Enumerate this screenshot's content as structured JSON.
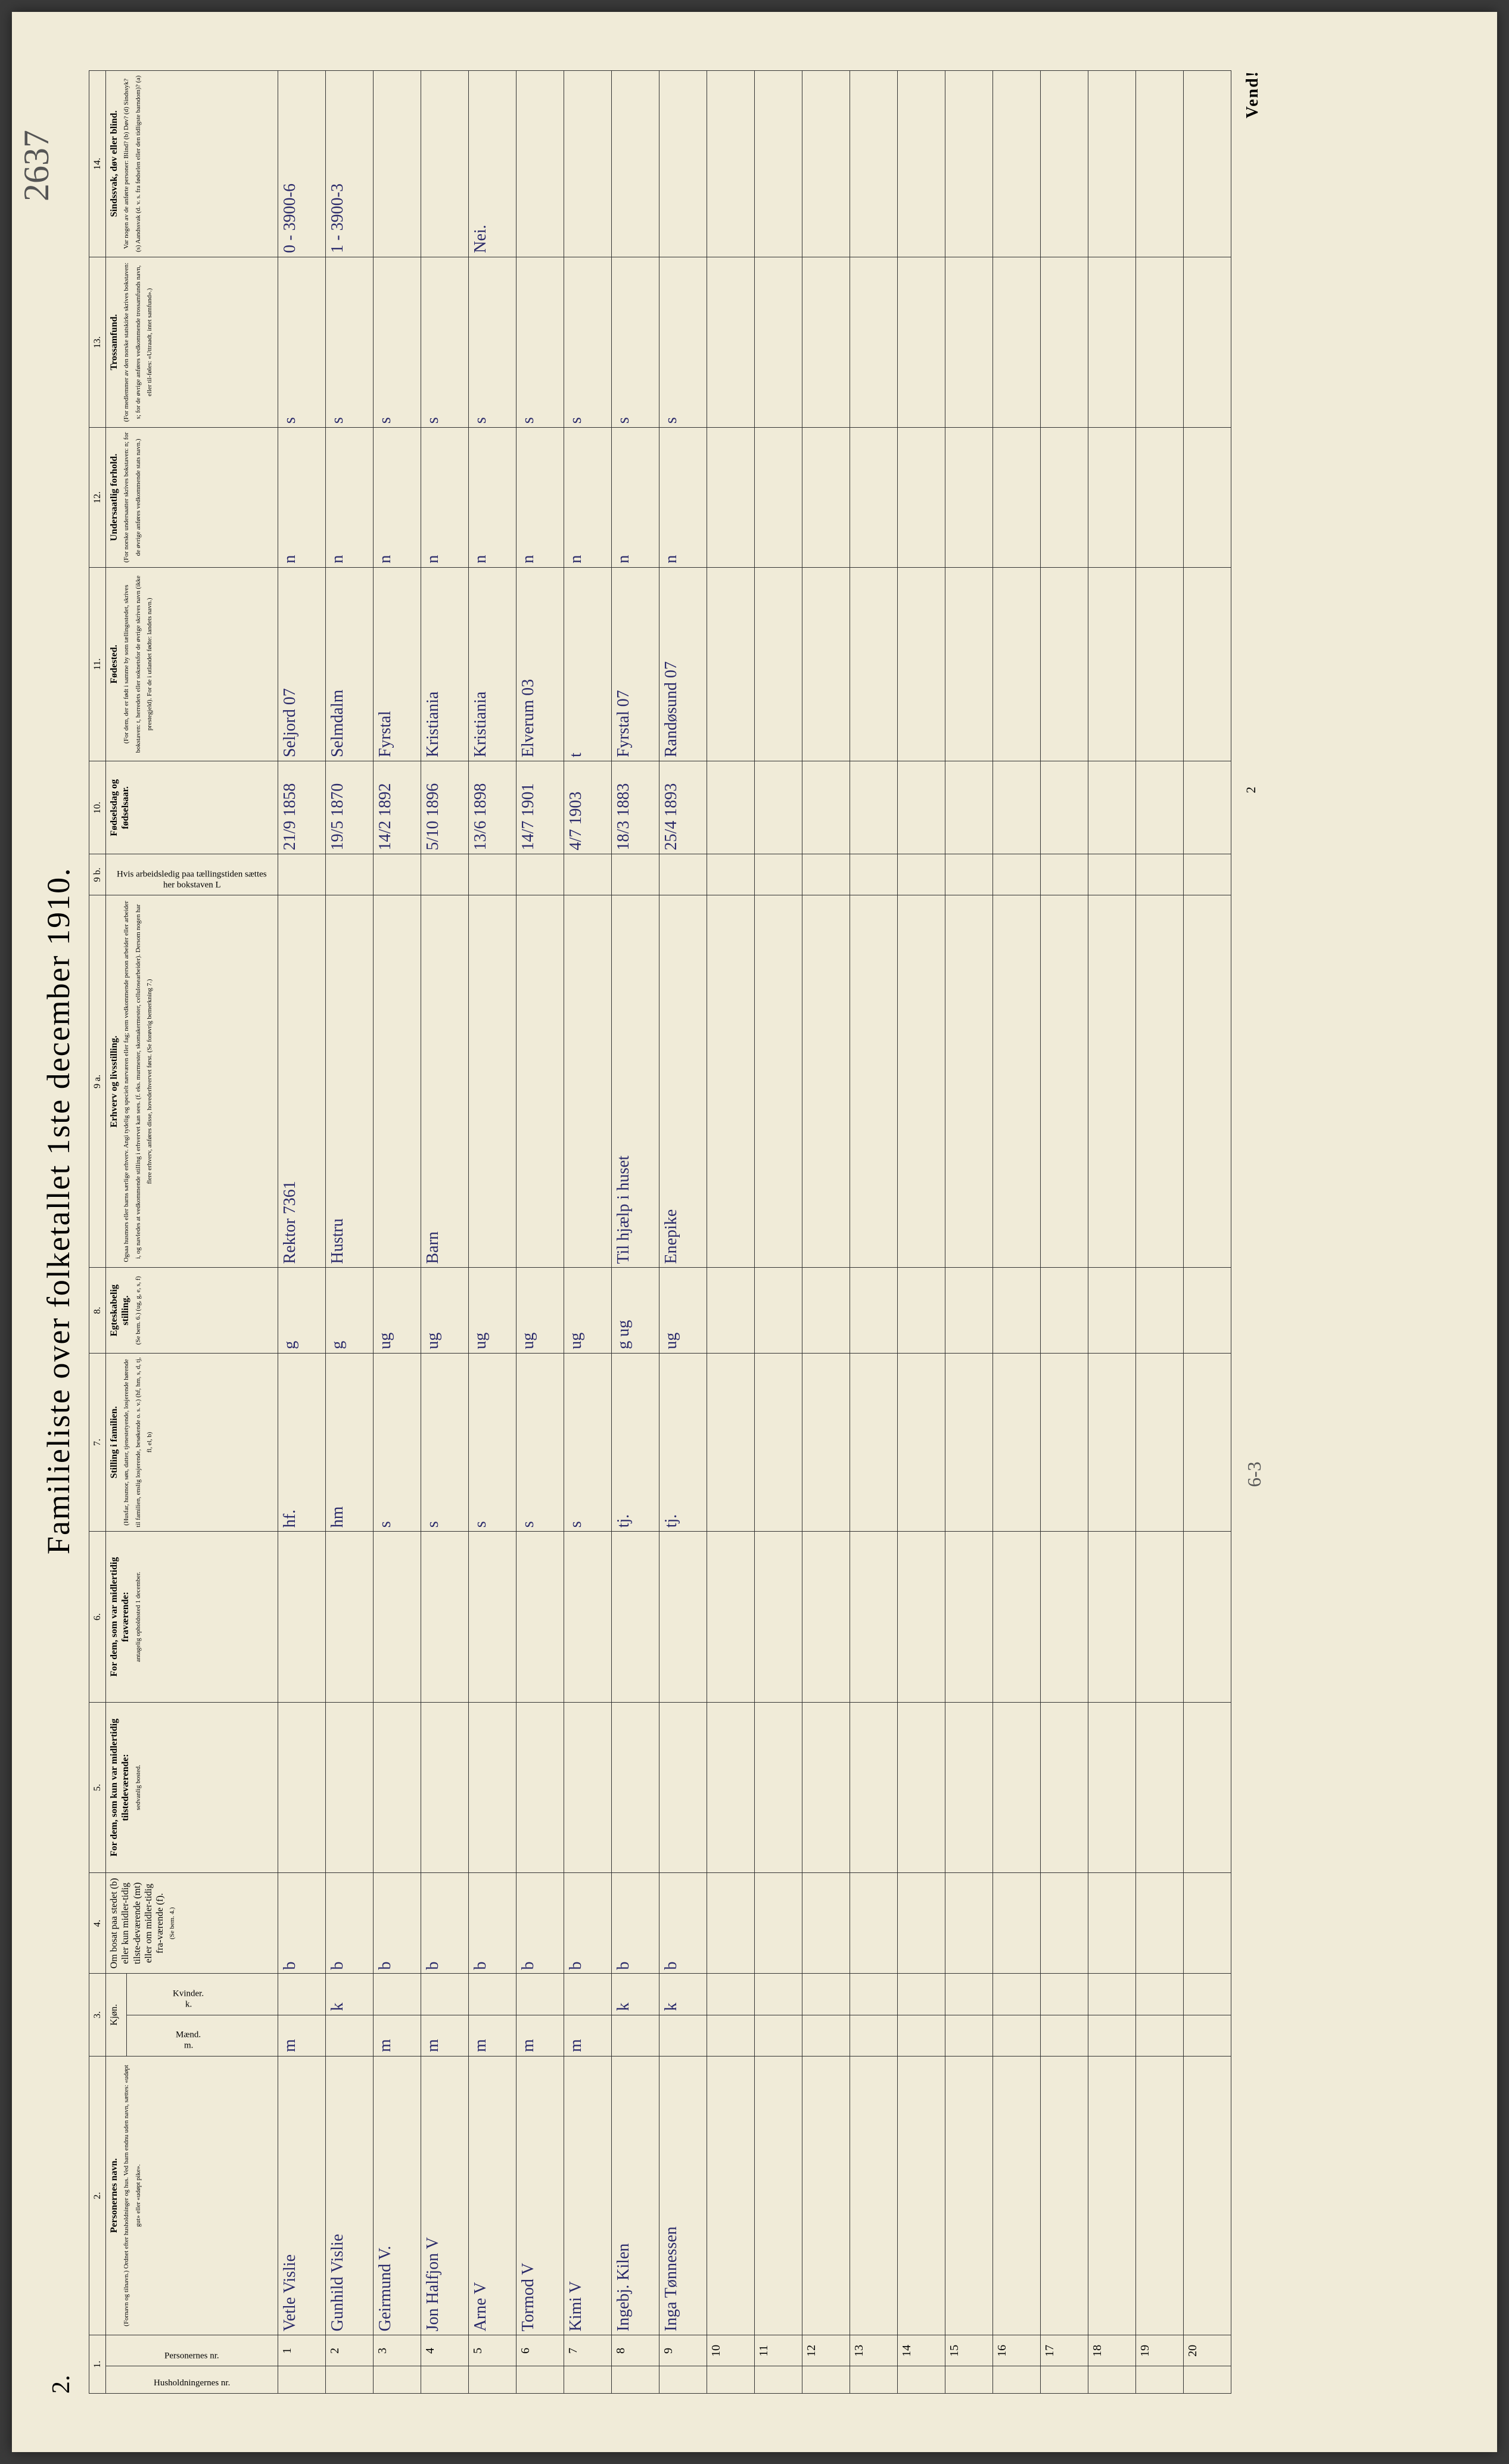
{
  "page": {
    "form_number": "2.",
    "title": "Familieliste over folketallet 1ste december 1910.",
    "handwritten_top": "2637",
    "vend": "Vend!",
    "footer_count": "6-3",
    "footer_page": "2"
  },
  "columns": [
    {
      "num": "1.",
      "vert": "Husholdningernes nr.",
      "sub": ""
    },
    {
      "num": "",
      "vert": "Personernes nr.",
      "sub": ""
    },
    {
      "num": "2.",
      "header": "Personernes navn.",
      "sub": "(Fornavn og tilnavn.)\nOrdnet efter husholdninger og hus.\nVed barn endnu uden navn, sættes: «udøpt gut» eller «udøpt pike»."
    },
    {
      "num": "3.",
      "header": "Kjøn.",
      "sub_m": "Mænd.",
      "sub_k": "Kvinder.",
      "foot_m": "m.",
      "foot_k": "k."
    },
    {
      "num": "4.",
      "header": "Om bosat paa stedet (b) eller kun midler-tidig tilste-deværende (mt) eller om midler-tidig fra-værende (f).",
      "sub": "(Se bem. 4.)"
    },
    {
      "num": "5.",
      "header": "For dem, som kun var midlertidig tilstedeværende:",
      "sub": "sedvanlig bosted."
    },
    {
      "num": "6.",
      "header": "For dem, som var midlertidig fraværende:",
      "sub": "antagelig opholdssted 1 december."
    },
    {
      "num": "7.",
      "header": "Stilling i familien.",
      "sub": "(Husfar, husmor, søn, datter, tjenestetyende, losjerende hørende til familien, enslig losjerende, besøkende o. s. v.)\n(hf, hm, s, d, tj, fl, el, b)"
    },
    {
      "num": "8.",
      "header": "Egteskabelig stilling.",
      "sub": "(Se bem. 6.)\n(ug, g, e, s, f)"
    },
    {
      "num": "9 a.",
      "header": "Erhverv og livsstilling.",
      "sub": "Ogsaa husmors eller barns særlige erhverv. Angi tydelig og specielt nærværen eller fag; nem vedkommende person arbeider eller arbeider i, og navledes at vedkommende stilling i erhvervet kan sees. (f. eks. murmester, skomakermester, cellulosearbeider). Dersom nogen har flere erhverv, anføres disse, hovederhvervet først.\n(Se forøvrig bemerkning 7.)"
    },
    {
      "num": "9 b.",
      "vert": "Hvis arbeidsledig paa tællingstiden sættes her bokstaven L"
    },
    {
      "num": "10.",
      "header": "Fødselsdag og fødselsaar."
    },
    {
      "num": "11.",
      "header": "Fødested.",
      "sub": "(For dem, der er født i samme by som tællingsstedet, skrives bokstaven: t, herredets eller soknetsfor de øvrige skrives navn (ikke prestegjeld). For de i utlandet fødte: landets navn.)"
    },
    {
      "num": "12.",
      "header": "Undersaatlig forhold.",
      "sub": "(For norske undersaatter skrives bokstaven: n; for de øvrige anføres vedkommende stats navn.)"
    },
    {
      "num": "13.",
      "header": "Trossamfund.",
      "sub": "(For medlemmer av den norske statskirke skrives bokstaven: s; for de øvrige anføres vedkommende trossamfunds navn, eller til-føles: «Uttraadt, intet samfund».)"
    },
    {
      "num": "14.",
      "header": "Sindssvak, døv eller blind.",
      "sub": "Var nogen av de anførte personer:\nBlind? (b)\nDøv? (d)\nSindssyk? (s)\nAandssvak (d. v. s. fra fødselen eller den tidligste barndom)? (a)"
    }
  ],
  "rows": [
    {
      "n": "1",
      "name": "Vetle Vislie",
      "sex_m": "m",
      "sex_k": "",
      "res": "b",
      "c5": "",
      "c6": "",
      "fam": "hf.",
      "mar": "g",
      "occ": "Rektor 7361",
      "c9b": "",
      "birth": "21/9 1858",
      "place": "Seljord 07",
      "nat": "n",
      "rel": "s",
      "inf": "0 - 3900-6"
    },
    {
      "n": "2",
      "name": "Gunhild Vislie",
      "sex_m": "",
      "sex_k": "k",
      "res": "b",
      "c5": "",
      "c6": "",
      "fam": "hm",
      "mar": "g",
      "occ": "Hustru",
      "c9b": "",
      "birth": "19/5 1870",
      "place": "Selmdalm",
      "nat": "n",
      "rel": "s",
      "inf": "1 - 3900-3"
    },
    {
      "n": "3",
      "name": "Geirmund V.",
      "sex_m": "m",
      "sex_k": "",
      "res": "b",
      "c5": "",
      "c6": "",
      "fam": "s",
      "mar": "ug",
      "occ": "",
      "c9b": "",
      "birth": "14/2 1892",
      "place": "Fyrstal",
      "nat": "n",
      "rel": "s",
      "inf": ""
    },
    {
      "n": "4",
      "name": "Jon Halfjon V",
      "sex_m": "m",
      "sex_k": "",
      "res": "b",
      "c5": "",
      "c6": "",
      "fam": "s",
      "mar": "ug",
      "occ": "Barn",
      "c9b": "",
      "birth": "5/10 1896",
      "place": "Kristiania",
      "nat": "n",
      "rel": "s",
      "inf": ""
    },
    {
      "n": "5",
      "name": "Arne V",
      "sex_m": "m",
      "sex_k": "",
      "res": "b",
      "c5": "",
      "c6": "",
      "fam": "s",
      "mar": "ug",
      "occ": "",
      "c9b": "",
      "birth": "13/6 1898",
      "place": "Kristiania",
      "nat": "n",
      "rel": "s",
      "inf": "Nei."
    },
    {
      "n": "6",
      "name": "Tormod V",
      "sex_m": "m",
      "sex_k": "",
      "res": "b",
      "c5": "",
      "c6": "",
      "fam": "s",
      "mar": "ug",
      "occ": "",
      "c9b": "",
      "birth": "14/7 1901",
      "place": "Elverum 03",
      "nat": "n",
      "rel": "s",
      "inf": ""
    },
    {
      "n": "7",
      "name": "Kimi V",
      "sex_m": "m",
      "sex_k": "",
      "res": "b",
      "c5": "",
      "c6": "",
      "fam": "s",
      "mar": "ug",
      "occ": "",
      "c9b": "",
      "birth": "4/7 1903",
      "place": "t",
      "nat": "n",
      "rel": "s",
      "inf": ""
    },
    {
      "n": "8",
      "name": "Ingebj. Kilen",
      "sex_m": "",
      "sex_k": "k",
      "res": "b",
      "c5": "",
      "c6": "",
      "fam": "tj.",
      "mar": "g ug",
      "occ": "Til hjælp i huset",
      "c9b": "",
      "birth": "18/3 1883",
      "place": "Fyrstal 07",
      "nat": "n",
      "rel": "s",
      "inf": ""
    },
    {
      "n": "9",
      "name": "Inga Tønnessen",
      "sex_m": "",
      "sex_k": "k",
      "res": "b",
      "c5": "",
      "c6": "",
      "fam": "tj.",
      "mar": "ug",
      "occ": "Enepike",
      "c9b": "",
      "birth": "25/4 1893",
      "place": "Randøsund 07",
      "nat": "n",
      "rel": "s",
      "inf": ""
    },
    {
      "n": "10"
    },
    {
      "n": "11"
    },
    {
      "n": "12"
    },
    {
      "n": "13"
    },
    {
      "n": "14"
    },
    {
      "n": "15"
    },
    {
      "n": "16"
    },
    {
      "n": "17"
    },
    {
      "n": "18"
    },
    {
      "n": "19"
    },
    {
      "n": "20"
    }
  ]
}
